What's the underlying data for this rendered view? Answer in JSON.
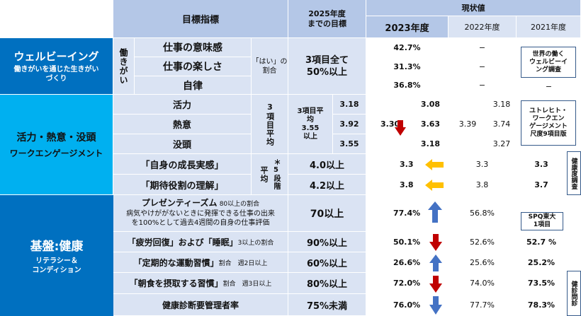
{
  "header": {
    "target_label": "目標指標",
    "goal_label": "2025年度\nまでの目標",
    "current_label": "現状値",
    "year_2023": "2023年度",
    "year_2022": "2022年度",
    "year_2021": "2021年度"
  },
  "categories": {
    "wellbeing_title": "ウェルビーイング",
    "wellbeing_sub": "働きがいを通じた生きがい\nづくり",
    "engagement_title": "活力・熱意・没頭",
    "engagement_sub": "ワークエンゲージメント",
    "health_title": "基盤:健康",
    "health_sub": "リテラシー＆\nコンディション"
  },
  "wellbeing": {
    "group_label": "働きがい",
    "items": [
      "仕事の意味感",
      "仕事の楽しさ",
      "自律"
    ],
    "method": "「はい」の\n割合",
    "goal": "3項目全て\n50%以上",
    "v2023": [
      "42.7%",
      "31.3%",
      "36.8%"
    ],
    "v2022": [
      "−",
      "−",
      "−"
    ],
    "v2021_last": "−",
    "note": "世界の働く\nウェルビーイ\nング調査"
  },
  "engagement": {
    "items": [
      "活力",
      "熱意",
      "没頭"
    ],
    "method": "3項目平均",
    "goal_text": "3項目平\n均\n3.55\n以上",
    "goal_values": [
      "3.18",
      "3.92",
      "3.55"
    ],
    "avg_2023": "3.30",
    "v2023": [
      "3.08",
      "3.63",
      "3.18"
    ],
    "avg_2022": "3.39",
    "v2022": [
      "3.18",
      "3.74",
      "3.27"
    ],
    "note": "ユトレヒト・\nワークエン\nゲージメント\n尺度9項目版"
  },
  "growth": {
    "items": [
      "「自身の成長実感」",
      "「期待役割の理解」"
    ],
    "method": "平均",
    "method_note": "＊5段階",
    "goals": [
      "4.0以上",
      "4.2以上"
    ],
    "v2023": [
      "3.3",
      "3.8"
    ],
    "v2022": [
      "3.3",
      "3.8"
    ],
    "v2021": [
      "3.3",
      "3.7"
    ],
    "side_note": "健康度調査"
  },
  "health": {
    "presenteeism_title": "プレゼンティーズム",
    "presenteeism_cond": "80以上の割合",
    "presenteeism_desc": "病気やけががないときに発揮できる仕事の出来\nを100%として過去4週間の自身の仕事評価",
    "fatigue_label": "「疲労回復」および「睡眠」",
    "fatigue_cond": "3以上の割合",
    "exercise_label": "「定期的な運動習慣」",
    "exercise_cond": "割合　週2日以上",
    "breakfast_label": "「朝食を摂取する習慣」",
    "breakfast_cond": "割合　週3日以上",
    "checkup_label": "健康診断要管理者率",
    "goals": [
      "70以上",
      "90%以上",
      "60%以上",
      "80%以上",
      "75%未満"
    ],
    "v2023": [
      "77.4%",
      "50.1%",
      "26.6%",
      "72.0%",
      "76.0%"
    ],
    "v2022": [
      "56.8%",
      "52.6%",
      "25.6%",
      "74.0%",
      "77.7%"
    ],
    "v2021": [
      "-",
      "52.7 %",
      "25.2%",
      "73.5%",
      "78.3%"
    ],
    "spq_note": "SPQ東大\n1項目",
    "side_note": "健診問診"
  },
  "colors": {
    "header": "#b4c7e7",
    "body": "#dae3f3",
    "cat_dark": "#0070c0",
    "cat_light": "#00b0f0",
    "up_arrow": "#4472c4",
    "down_arrow": "#c00000",
    "left_arrow": "#ffc000"
  }
}
